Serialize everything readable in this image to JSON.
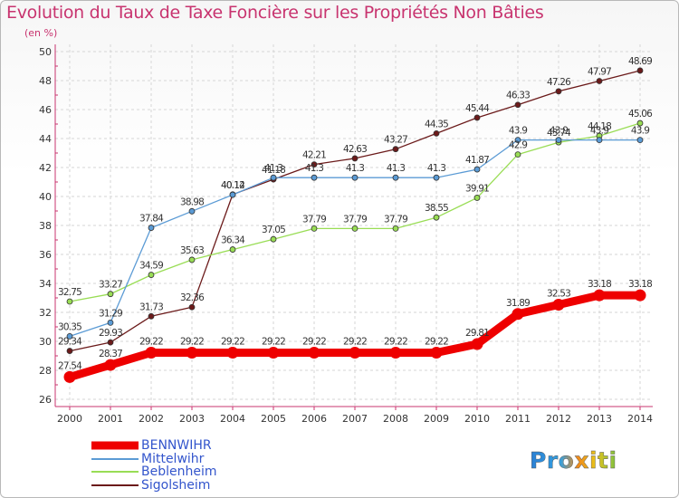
{
  "title": "Evolution du Taux de Taxe Foncière sur les Propriétés Non Bâties",
  "unit_label": "(en %)",
  "logo_text": "Proxiti",
  "chart_data": {
    "type": "line",
    "title": "Evolution du Taux de Taxe Foncière sur les Propriétés Non Bâties",
    "ylabel": "(en %)",
    "xlabel": "",
    "ylim": [
      26,
      50
    ],
    "yticks": [
      26,
      28,
      30,
      32,
      34,
      36,
      38,
      40,
      42,
      44,
      46,
      48,
      50
    ],
    "x": [
      "2000",
      "2001",
      "2002",
      "2003",
      "2004",
      "2005",
      "2006",
      "2007",
      "2008",
      "2009",
      "2010",
      "2011",
      "2012",
      "2013",
      "2014"
    ],
    "grid": true,
    "legend_position": "bottom-left",
    "series": [
      {
        "name": "Sigolsheim",
        "color": "#6b1a1a",
        "values": [
          29.34,
          29.93,
          31.73,
          32.36,
          40.14,
          41.18,
          42.21,
          42.63,
          43.27,
          44.35,
          45.44,
          46.33,
          47.26,
          47.97,
          48.69
        ],
        "labels": [
          "29.34",
          "29.93",
          "31.73",
          "32.36",
          "40.14",
          "41.18",
          "42.21",
          "42.63",
          "43.27",
          "44.35",
          "45.44",
          "46.33",
          "47.26",
          "47.97",
          "48.69"
        ]
      },
      {
        "name": "Beblenheim",
        "color": "#99dd55",
        "values": [
          32.75,
          33.27,
          34.59,
          35.63,
          36.34,
          37.05,
          37.79,
          37.79,
          37.79,
          38.55,
          39.91,
          42.9,
          43.74,
          44.18,
          45.06
        ],
        "labels": [
          "32.75",
          "33.27",
          "34.59",
          "35.63",
          "36.34",
          "37.05",
          "37.79",
          "37.79",
          "37.79",
          "38.55",
          "39.91",
          "42.9",
          "43.74",
          "44.18",
          "45.06"
        ]
      },
      {
        "name": "Mittelwihr",
        "color": "#5b9bd5",
        "values": [
          30.35,
          31.29,
          37.84,
          38.98,
          40.12,
          41.3,
          41.3,
          41.3,
          41.3,
          41.3,
          41.87,
          43.9,
          43.9,
          43.9,
          43.9
        ],
        "labels": [
          "30.35",
          "31.29",
          "37.84",
          "38.98",
          "40.12",
          "41.3",
          "41.3",
          "41.3",
          "41.3",
          "41.3",
          "41.87",
          "43.9",
          "43.9",
          "43.9",
          "43.9"
        ]
      },
      {
        "name": "BENNWIHR",
        "color": "#ee0000",
        "values": [
          27.54,
          28.37,
          29.22,
          29.22,
          29.22,
          29.22,
          29.22,
          29.22,
          29.22,
          29.22,
          29.81,
          31.89,
          32.53,
          33.18,
          33.18
        ],
        "labels": [
          "27.54",
          "28.37",
          "29.22",
          "29.22",
          "29.22",
          "29.22",
          "29.22",
          "29.22",
          "29.22",
          "29.22",
          "29.81",
          "31.89",
          "32.53",
          "33.18",
          "33.18"
        ]
      }
    ]
  },
  "legend": [
    {
      "label": "BENNWIHR",
      "color": "#ee0000"
    },
    {
      "label": "Mittelwihr",
      "color": "#5b9bd5"
    },
    {
      "label": "Beblenheim",
      "color": "#99dd55"
    },
    {
      "label": "Sigolsheim",
      "color": "#6b1a1a"
    }
  ]
}
